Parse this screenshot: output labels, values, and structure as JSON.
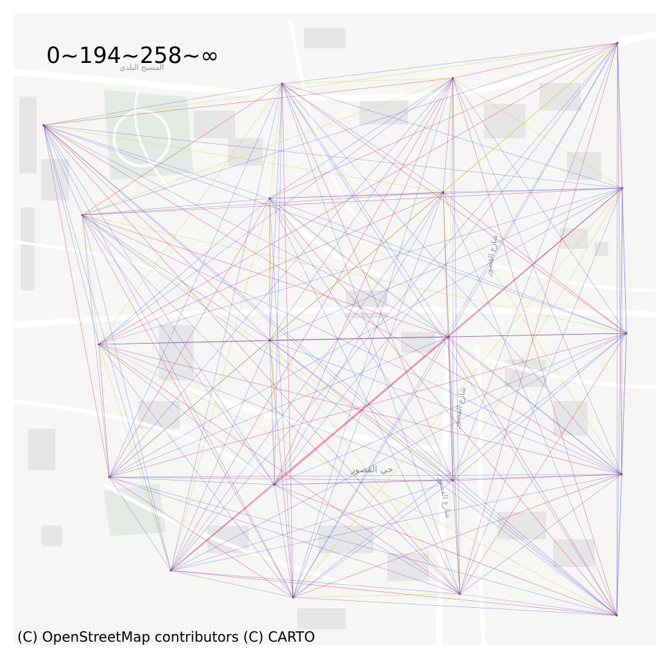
{
  "map": {
    "title": "0~194~258~∞",
    "attribution": "(C) OpenStreetMap contributors (C) CARTO",
    "basemap_labels": [
      "المسبح البلدي",
      "حي القصور",
      "شارع القصور",
      "شارع القصور",
      "شارع القصور"
    ],
    "legend_bins": [
      {
        "range": "0~194",
        "color": "#d4cc2a"
      },
      {
        "range": "194~258",
        "color": "#d62050"
      },
      {
        "range": "258~∞",
        "color": "#2a3fd6"
      }
    ],
    "colors": {
      "background": "#f6f6f4",
      "road": "#ffffff",
      "park": "#e4eae4",
      "building": "#e6e6e6"
    },
    "nodes": [
      {
        "id": "n01",
        "lon": 63,
        "lat": 181
      },
      {
        "id": "n02",
        "lon": 408,
        "lat": 121
      },
      {
        "id": "n03",
        "lon": 655,
        "lat": 113
      },
      {
        "id": "n04",
        "lon": 893,
        "lat": 62
      },
      {
        "id": "n05",
        "lon": 119,
        "lat": 311
      },
      {
        "id": "n06",
        "lon": 390,
        "lat": 287
      },
      {
        "id": "n07",
        "lon": 641,
        "lat": 278
      },
      {
        "id": "n08",
        "lon": 900,
        "lat": 272
      },
      {
        "id": "n09",
        "lon": 143,
        "lat": 498
      },
      {
        "id": "n10",
        "lon": 390,
        "lat": 492
      },
      {
        "id": "n11",
        "lon": 649,
        "lat": 487
      },
      {
        "id": "n12",
        "lon": 906,
        "lat": 482
      },
      {
        "id": "n13",
        "lon": 158,
        "lat": 690
      },
      {
        "id": "n14",
        "lon": 397,
        "lat": 701
      },
      {
        "id": "n15",
        "lon": 655,
        "lat": 695
      },
      {
        "id": "n16",
        "lon": 899,
        "lat": 686
      },
      {
        "id": "n17",
        "lon": 247,
        "lat": 825
      },
      {
        "id": "n18",
        "lon": 424,
        "lat": 864
      },
      {
        "id": "n19",
        "lon": 665,
        "lat": 859
      },
      {
        "id": "n20",
        "lon": 892,
        "lat": 890
      }
    ]
  }
}
